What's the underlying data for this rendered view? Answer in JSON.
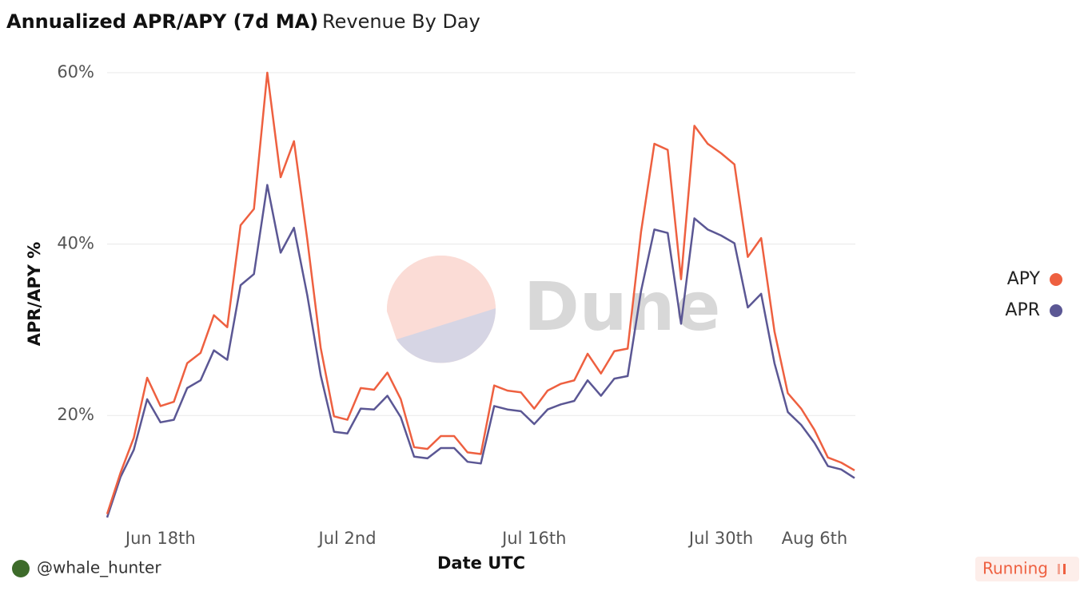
{
  "tabs": [
    "Annualized APR/APY (7d MA)",
    "Revenue By Day"
  ],
  "footer": {
    "user": "@whale_hunter",
    "status": "Running"
  },
  "chart_data": {
    "type": "line",
    "watermark": "Dune",
    "x": [
      "06-14",
      "06-15",
      "06-16",
      "06-17",
      "06-18",
      "06-19",
      "06-20",
      "06-21",
      "06-22",
      "06-23",
      "06-24",
      "06-25",
      "06-26",
      "06-27",
      "06-28",
      "06-29",
      "06-30",
      "07-01",
      "07-02",
      "07-03",
      "07-04",
      "07-05",
      "07-06",
      "07-07",
      "07-08",
      "07-09",
      "07-10",
      "07-11",
      "07-12",
      "07-13",
      "07-14",
      "07-15",
      "07-16",
      "07-17",
      "07-18",
      "07-19",
      "07-20",
      "07-21",
      "07-22",
      "07-23",
      "07-24",
      "07-25",
      "07-26",
      "07-27",
      "07-28",
      "07-29",
      "07-30",
      "07-31",
      "08-01",
      "08-02",
      "08-03",
      "08-04",
      "08-05",
      "08-06",
      "08-07",
      "08-08",
      "08-09"
    ],
    "xlim": [
      "06-14",
      "08-09"
    ],
    "xticks": [
      {
        "value": "06-18",
        "label": "Jun 18th"
      },
      {
        "value": "07-02",
        "label": "Jul 2nd"
      },
      {
        "value": "07-16",
        "label": "Jul 16th"
      },
      {
        "value": "07-30",
        "label": "Jul 30th"
      },
      {
        "value": "08-06",
        "label": "Aug 6th"
      }
    ],
    "ylim": [
      8,
      60
    ],
    "yticks": [
      {
        "value": 20,
        "label": "20%"
      },
      {
        "value": 40,
        "label": "40%"
      },
      {
        "value": 60,
        "label": "60%"
      }
    ],
    "grid": true,
    "x_label": "Date UTC",
    "y_label": "APR/APY %",
    "legend": "right",
    "series": [
      {
        "name": "APY",
        "color": "#ee6040",
        "values": [
          8.5,
          13.3,
          17.4,
          24.4,
          21.1,
          21.6,
          26.1,
          27.3,
          31.7,
          30.3,
          42.2,
          44.1,
          60,
          47.8,
          52,
          40.5,
          27.9,
          19.9,
          19.5,
          23.2,
          23,
          25,
          21.9,
          16.3,
          16.1,
          17.6,
          17.6,
          15.7,
          15.5,
          23.5,
          22.9,
          22.7,
          20.8,
          22.9,
          23.7,
          24.1,
          27.2,
          24.9,
          27.5,
          27.8,
          41.4,
          51.7,
          51,
          35.9,
          53.8,
          51.7,
          50.6,
          49.3,
          38.5,
          40.7,
          29.8,
          22.6,
          20.8,
          18.3,
          15.1,
          14.5,
          13.6
        ]
      },
      {
        "name": "APR",
        "color": "#5b5794",
        "values": [
          8.1,
          12.8,
          16,
          21.9,
          19.2,
          19.5,
          23.2,
          24.1,
          27.6,
          26.5,
          35.2,
          36.5,
          46.9,
          39,
          41.9,
          34,
          24.7,
          18.1,
          17.9,
          20.8,
          20.7,
          22.3,
          19.8,
          15.2,
          15,
          16.2,
          16.2,
          14.6,
          14.4,
          21.1,
          20.7,
          20.5,
          19,
          20.7,
          21.3,
          21.7,
          24.1,
          22.3,
          24.3,
          24.6,
          34.5,
          41.7,
          41.3,
          30.7,
          43,
          41.7,
          41,
          40.1,
          32.6,
          34.2,
          26.1,
          20.4,
          18.9,
          16.8,
          14.1,
          13.7,
          12.7
        ]
      }
    ]
  }
}
